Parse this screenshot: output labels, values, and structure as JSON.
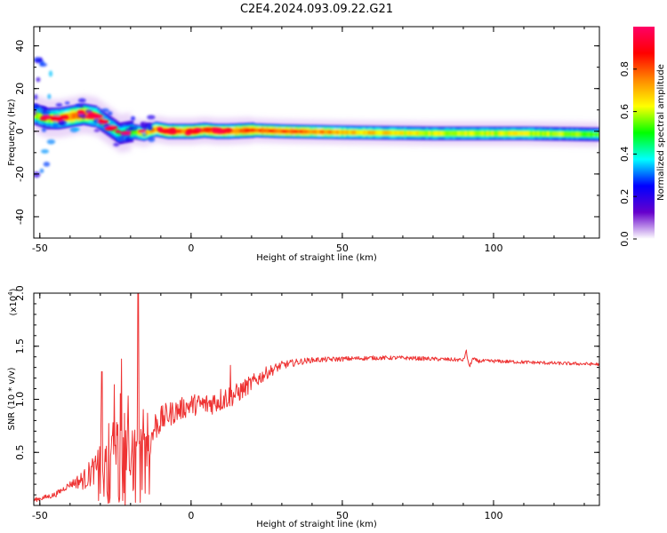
{
  "title": "C2E4.2024.093.09.22.G21",
  "chart_data": [
    {
      "type": "heatmap",
      "xlabel": "Height of straight line (km)",
      "ylabel": "Frequency (Hz)",
      "xlim": [
        -52,
        135
      ],
      "ylim": [
        -50,
        49
      ],
      "x_ticks": [
        -50,
        0,
        50,
        100
      ],
      "x_tick_labels": [
        "-50",
        "0",
        "50",
        "100"
      ],
      "y_ticks": [
        -40,
        -20,
        0,
        20,
        40
      ],
      "y_tick_labels": [
        "-40",
        "-20",
        "0",
        "20",
        "40"
      ],
      "ridge": {
        "x": [
          -52,
          -48,
          -44,
          -40,
          -36,
          -32,
          -28,
          -24,
          -20,
          -16,
          -12,
          -8,
          -4,
          0,
          4,
          8,
          12,
          20,
          30,
          50,
          80,
          110,
          135
        ],
        "y": [
          8,
          6,
          6,
          7,
          8,
          7,
          3,
          -1,
          0,
          -1,
          1,
          0,
          0,
          0,
          0.5,
          0,
          0,
          0.5,
          0,
          -0.5,
          -1,
          -1,
          -1.5
        ],
        "amplitude": [
          0.6,
          0.55,
          0.65,
          0.8,
          0.85,
          0.65,
          0.5,
          0.45,
          0.5,
          0.7,
          0.75,
          0.85,
          0.8,
          0.85,
          0.8,
          0.85,
          0.8,
          0.85,
          0.85,
          0.7,
          0.6,
          0.6,
          0.5
        ]
      },
      "colorbar": {
        "label": "Normalized spectral amplitude",
        "range": [
          0,
          1
        ],
        "ticks": [
          0.0,
          0.2,
          0.4,
          0.6,
          0.8
        ],
        "tick_labels": [
          "0.0",
          "0.2",
          "0.4",
          "0.6",
          "0.8"
        ],
        "colors": [
          "#ffffff",
          "#6600cc",
          "#0000ff",
          "#00ffff",
          "#00ff00",
          "#ffff00",
          "#ff8800",
          "#ff0000",
          "#ff0066"
        ]
      }
    },
    {
      "type": "line",
      "xlabel": "Height of straight line (km)",
      "ylabel": "SNR (10 * v/v)",
      "y_scale_label": "(x10",
      "y_scale_exponent": "4",
      "y_scale_close": ")",
      "xlim": [
        -52,
        135
      ],
      "ylim": [
        0,
        2.0
      ],
      "x_ticks": [
        -50,
        0,
        50,
        100
      ],
      "x_tick_labels": [
        "-50",
        "0",
        "50",
        "100"
      ],
      "y_ticks": [
        0.5,
        1.0,
        1.5,
        2.0
      ],
      "y_tick_labels": [
        "0.5",
        "1.0",
        "1.5",
        "2.0"
      ],
      "color": "#ee3333",
      "envelope": {
        "x": [
          -52,
          -45,
          -40,
          -35,
          -32,
          -30,
          -27,
          -24,
          -20,
          -17,
          -15,
          -12,
          -8,
          -4,
          0,
          5,
          10,
          15,
          20,
          25,
          30,
          35,
          40,
          50,
          60,
          70,
          80,
          90,
          91,
          92,
          93,
          95,
          100,
          110,
          120,
          135
        ],
        "y": [
          0.05,
          0.1,
          0.2,
          0.25,
          0.35,
          0.5,
          0.6,
          0.55,
          0.55,
          0.6,
          0.5,
          0.75,
          0.85,
          0.9,
          0.95,
          0.95,
          1.0,
          1.05,
          1.15,
          1.25,
          1.32,
          1.35,
          1.37,
          1.38,
          1.39,
          1.39,
          1.38,
          1.37,
          1.45,
          1.3,
          1.38,
          1.36,
          1.36,
          1.35,
          1.34,
          1.33
        ]
      },
      "noise": {
        "x": [
          -52,
          -40,
          -32,
          -28,
          -24,
          -20,
          -17,
          -12,
          -8,
          0,
          10,
          20,
          30,
          40,
          60,
          135
        ],
        "y": [
          0.02,
          0.03,
          0.15,
          0.35,
          0.4,
          0.45,
          0.4,
          0.15,
          0.12,
          0.1,
          0.12,
          0.08,
          0.04,
          0.025,
          0.02,
          0.015
        ]
      },
      "spikes": [
        {
          "x": -29.5,
          "y": 1.26
        },
        {
          "x": -23,
          "y": 1.38
        },
        {
          "x": -17.5,
          "y": 2.05
        },
        {
          "x": 13,
          "y": 1.32
        }
      ]
    }
  ]
}
